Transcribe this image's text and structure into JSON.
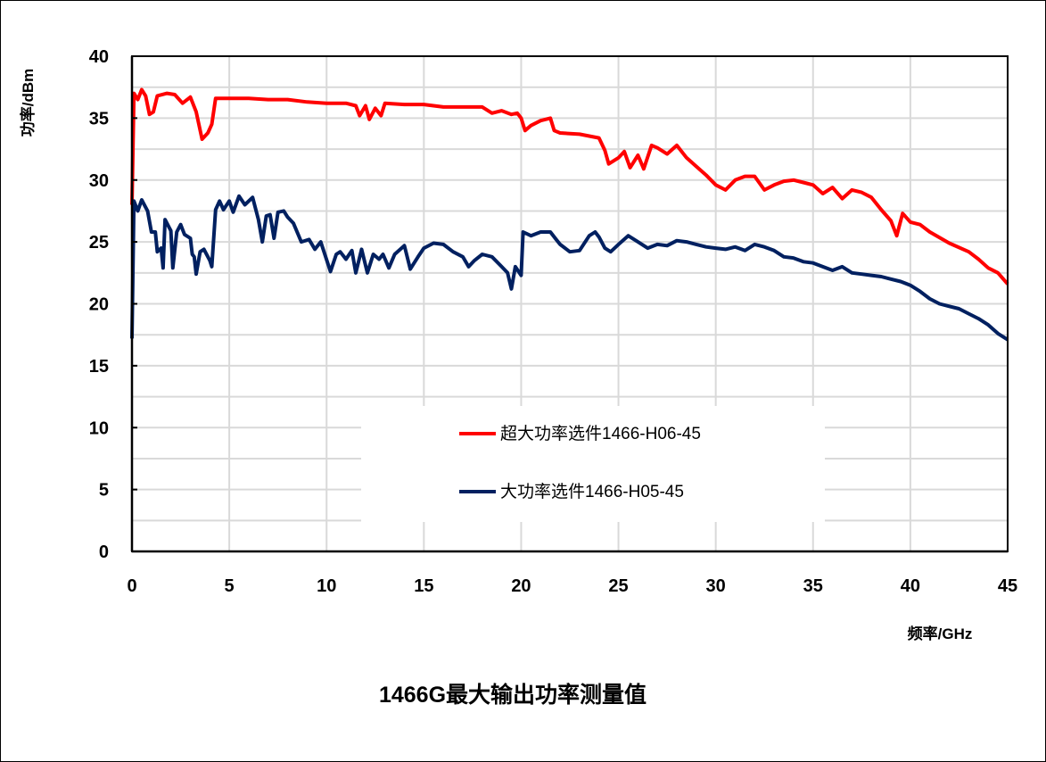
{
  "chart_data": {
    "type": "line",
    "title": "1466G最大输出功率测量值",
    "xlabel": "频率/GHz",
    "ylabel": "功率/dBm",
    "xlim": [
      0,
      45
    ],
    "ylim": [
      0,
      40
    ],
    "xticks": [
      "0",
      "5",
      "10",
      "15",
      "20",
      "25",
      "30",
      "35",
      "40",
      "45"
    ],
    "yticks": [
      "0",
      "5",
      "10",
      "15",
      "20",
      "25",
      "30",
      "35",
      "40"
    ],
    "grid": true,
    "legend_placement": "lower-center",
    "series": [
      {
        "name": "超大功率选件1466-H06-45",
        "color": "#ff0000",
        "x": [
          0,
          0.1,
          0.3,
          0.5,
          0.7,
          0.9,
          1.1,
          1.3,
          1.8,
          2.2,
          2.6,
          3.0,
          3.3,
          3.6,
          3.9,
          4.1,
          4.3,
          5,
          6,
          7,
          8,
          9,
          10,
          11,
          11.5,
          11.7,
          12,
          12.2,
          12.5,
          12.8,
          13,
          14,
          15,
          16,
          17,
          18,
          18.5,
          19,
          19.5,
          19.8,
          20,
          20.2,
          20.5,
          21,
          21.5,
          21.7,
          22,
          23,
          24,
          24.3,
          24.5,
          25,
          25.3,
          25.6,
          26,
          26.3,
          26.7,
          27,
          27.5,
          28,
          28.5,
          29,
          29.5,
          30,
          30.5,
          31,
          31.5,
          32,
          32.5,
          33,
          33.5,
          34,
          34.5,
          35,
          35.5,
          36,
          36.5,
          37,
          37.5,
          38,
          38.5,
          39,
          39.3,
          39.6,
          40,
          40.5,
          41,
          42,
          43,
          43.5,
          44,
          44.5,
          45
        ],
        "y": [
          28,
          37,
          36.5,
          37.3,
          36.8,
          35.3,
          35.5,
          36.8,
          37.0,
          36.9,
          36.2,
          36.7,
          35.5,
          33.3,
          33.8,
          34.5,
          36.6,
          36.6,
          36.6,
          36.5,
          36.5,
          36.3,
          36.2,
          36.2,
          36,
          35.2,
          36,
          34.9,
          35.8,
          35.2,
          36.2,
          36.1,
          36.1,
          35.9,
          35.9,
          35.9,
          35.4,
          35.6,
          35.3,
          35.4,
          35.0,
          34.0,
          34.4,
          34.8,
          35.0,
          34.0,
          33.8,
          33.7,
          33.4,
          32.4,
          31.3,
          31.8,
          32.3,
          31.0,
          32.0,
          30.9,
          32.8,
          32.6,
          32.1,
          32.8,
          31.8,
          31.1,
          30.4,
          29.6,
          29.2,
          30.0,
          30.3,
          30.3,
          29.2,
          29.6,
          29.9,
          30.0,
          29.8,
          29.6,
          28.9,
          29.4,
          28.5,
          29.2,
          29.0,
          28.6,
          27.6,
          26.7,
          25.5,
          27.3,
          26.6,
          26.4,
          25.8,
          24.9,
          24.2,
          23.6,
          22.9,
          22.5,
          21.6
        ]
      },
      {
        "name": "大功率选件1466-H05-45",
        "color": "#002060",
        "x": [
          0,
          0.1,
          0.3,
          0.5,
          0.8,
          1.0,
          1.2,
          1.3,
          1.5,
          1.6,
          1.7,
          2.0,
          2.1,
          2.3,
          2.5,
          2.7,
          3.0,
          3.1,
          3.2,
          3.3,
          3.5,
          3.7,
          4.0,
          4.1,
          4.3,
          4.5,
          4.7,
          5.0,
          5.2,
          5.5,
          5.8,
          6.2,
          6.5,
          6.7,
          6.9,
          7.1,
          7.3,
          7.5,
          7.8,
          8.0,
          8.3,
          8.7,
          9.1,
          9.4,
          9.7,
          10.2,
          10.5,
          10.7,
          11,
          11.3,
          11.5,
          11.8,
          12.1,
          12.4,
          12.7,
          12.9,
          13.2,
          13.5,
          14,
          14.3,
          14.7,
          15,
          15.5,
          16,
          16.5,
          17,
          17.3,
          17.6,
          18,
          18.5,
          19,
          19.3,
          19.5,
          19.7,
          20,
          20.1,
          20.5,
          21,
          21.5,
          21.8,
          22,
          22.5,
          23,
          23.5,
          23.8,
          24,
          24.3,
          24.6,
          25,
          25.5,
          26,
          26.5,
          27,
          27.5,
          28,
          28.5,
          29,
          29.5,
          30,
          30.5,
          31,
          31.5,
          32,
          32.5,
          33,
          33.5,
          34,
          34.5,
          35,
          35.5,
          36,
          36.5,
          37,
          37.5,
          38,
          38.5,
          39,
          39.5,
          40,
          40.5,
          41,
          41.5,
          42,
          42.5,
          43,
          43.5,
          44,
          44.5,
          45
        ],
        "y": [
          17.2,
          28.3,
          27.5,
          28.4,
          27.5,
          25.8,
          25.8,
          24.2,
          24.5,
          22.9,
          26.8,
          25.9,
          22.9,
          25.8,
          26.4,
          25.6,
          25.3,
          24.0,
          23.8,
          22.4,
          24.2,
          24.4,
          23.5,
          23.0,
          27.6,
          28.3,
          27.6,
          28.3,
          27.4,
          28.7,
          28.0,
          28.6,
          26.8,
          25.0,
          27.1,
          27.2,
          25.3,
          27.4,
          27.5,
          27.0,
          26.5,
          25.0,
          25.2,
          24.4,
          25.0,
          22.6,
          24.0,
          24.2,
          23.6,
          24.3,
          22.5,
          24.4,
          22.5,
          24.0,
          23.6,
          24.0,
          22.9,
          24.0,
          24.7,
          22.8,
          23.8,
          24.5,
          24.9,
          24.8,
          24.2,
          23.8,
          23.0,
          23.5,
          24.0,
          23.8,
          23.0,
          22.5,
          21.2,
          23.0,
          22.3,
          25.8,
          25.5,
          25.8,
          25.8,
          25.2,
          24.8,
          24.2,
          24.3,
          25.5,
          25.8,
          25.4,
          24.5,
          24.2,
          24.8,
          25.5,
          25.0,
          24.5,
          24.8,
          24.7,
          25.1,
          25.0,
          24.8,
          24.6,
          24.5,
          24.4,
          24.6,
          24.3,
          24.8,
          24.6,
          24.3,
          23.8,
          23.7,
          23.4,
          23.3,
          23.0,
          22.7,
          23.0,
          22.5,
          22.4,
          22.3,
          22.2,
          22.0,
          21.8,
          21.5,
          21.0,
          20.4,
          20.0,
          19.8,
          19.6,
          19.2,
          18.8,
          18.3,
          17.6,
          17.1
        ]
      }
    ]
  }
}
